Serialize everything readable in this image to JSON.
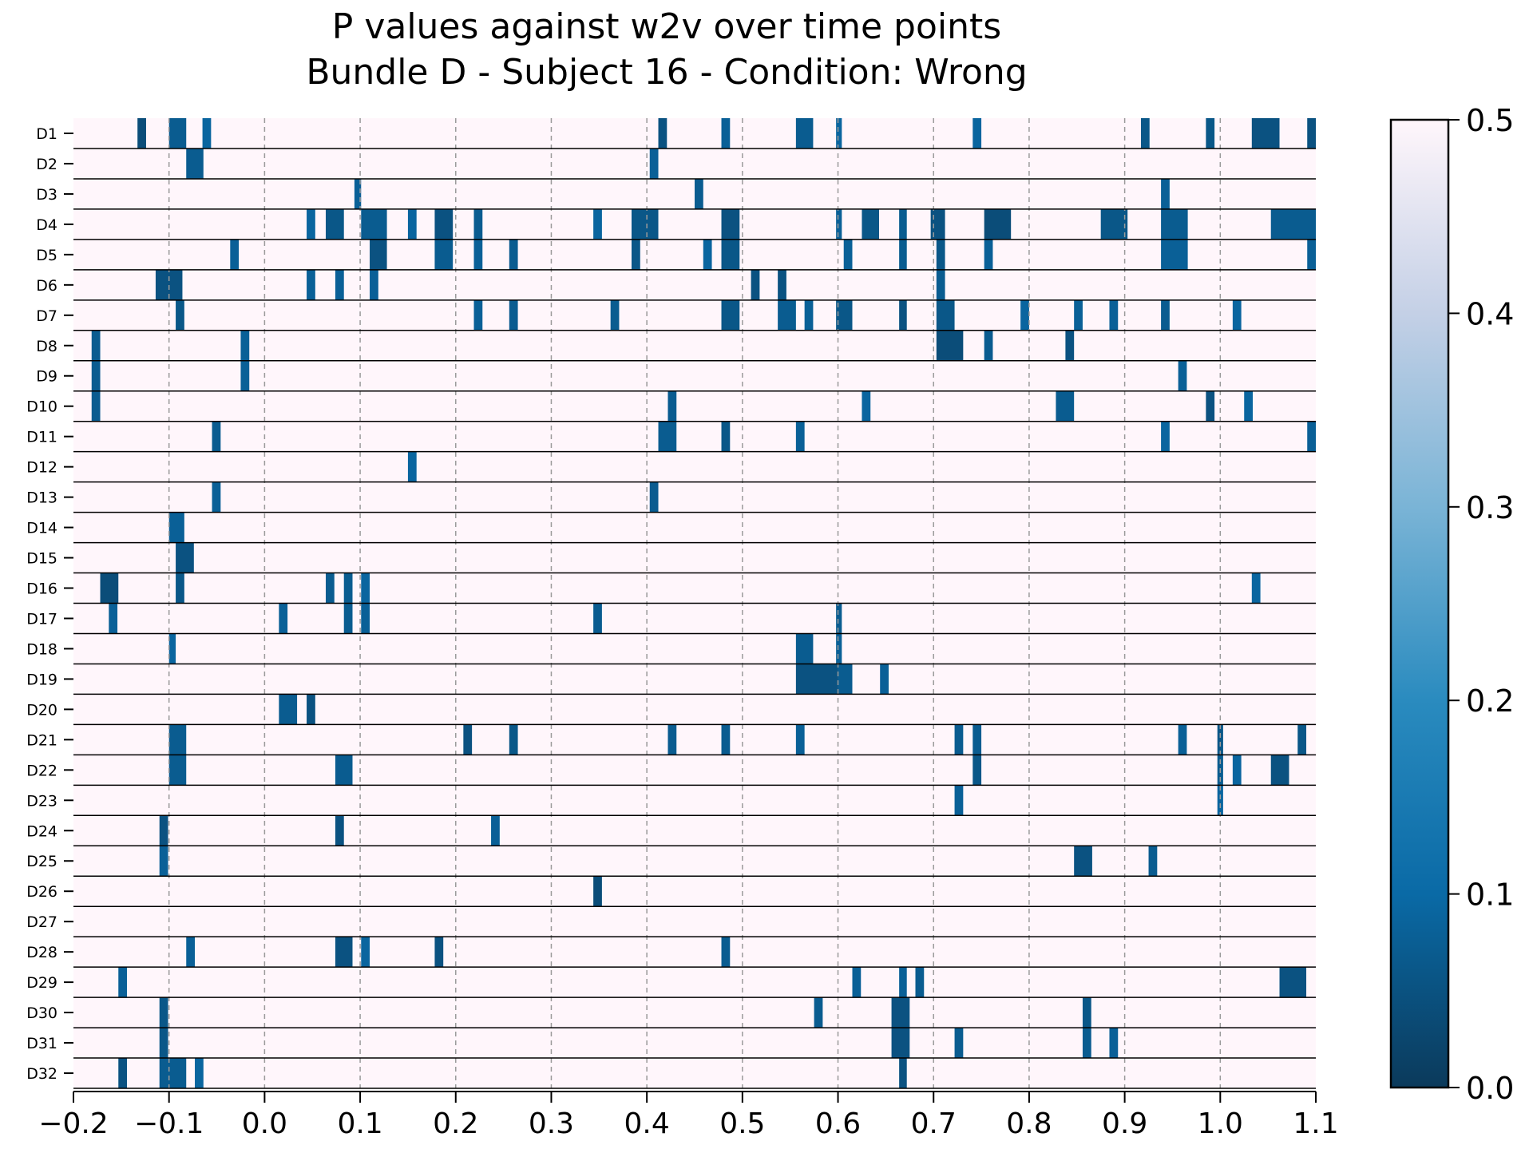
{
  "chart_data": {
    "type": "heatmap",
    "title_line1": "P values against w2v over time points",
    "title_line2": "Bundle D - Subject 16 - Condition: Wrong",
    "xlabel": "",
    "ylabel": "",
    "xlim": [
      -0.2,
      1.1
    ],
    "x_ticks": [
      "−0.2",
      "−0.1",
      "0.0",
      "0.1",
      "0.2",
      "0.3",
      "0.4",
      "0.5",
      "0.6",
      "0.7",
      "0.8",
      "0.9",
      "1.0",
      "1.1"
    ],
    "x_tick_values": [
      -0.2,
      -0.1,
      0.0,
      0.1,
      0.2,
      0.3,
      0.4,
      0.5,
      0.6,
      0.7,
      0.8,
      0.9,
      1.0,
      1.1
    ],
    "grid": "vertical dashed at x ticks",
    "rows": [
      "D1",
      "D2",
      "D3",
      "D4",
      "D5",
      "D6",
      "D7",
      "D8",
      "D9",
      "D10",
      "D11",
      "D12",
      "D13",
      "D14",
      "D15",
      "D16",
      "D17",
      "D18",
      "D19",
      "D20",
      "D21",
      "D22",
      "D23",
      "D24",
      "D25",
      "D26",
      "D27",
      "D28",
      "D29",
      "D30",
      "D31",
      "D32"
    ],
    "default_value": 0.5,
    "colorbar": {
      "ticks": [
        "0.0",
        "0.1",
        "0.2",
        "0.3",
        "0.4",
        "0.5"
      ],
      "tick_values": [
        0.0,
        0.1,
        0.2,
        0.3,
        0.4,
        0.5
      ],
      "range": [
        0.0,
        0.5
      ],
      "colors": [
        "#0b3a5b",
        "#0a6aa6",
        "#2a8bbf",
        "#7ab4d6",
        "#c4d0e6",
        "#fff6fb"
      ]
    },
    "cells": [
      [
        "D1",
        -0.133,
        -0.124,
        0.04
      ],
      [
        "D1",
        -0.1,
        -0.082,
        0.07
      ],
      [
        "D1",
        -0.065,
        -0.056,
        0.09
      ],
      [
        "D1",
        0.412,
        0.421,
        0.05
      ],
      [
        "D1",
        0.478,
        0.487,
        0.08
      ],
      [
        "D1",
        0.556,
        0.574,
        0.07
      ],
      [
        "D1",
        0.598,
        0.604,
        0.09
      ],
      [
        "D1",
        0.741,
        0.75,
        0.09
      ],
      [
        "D1",
        0.917,
        0.926,
        0.06
      ],
      [
        "D1",
        0.985,
        0.994,
        0.06
      ],
      [
        "D1",
        1.033,
        1.062,
        0.05
      ],
      [
        "D1",
        1.091,
        1.1,
        0.05
      ],
      [
        "D2",
        -0.082,
        -0.064,
        0.07
      ],
      [
        "D2",
        0.403,
        0.412,
        0.08
      ],
      [
        "D3",
        0.094,
        0.101,
        0.08
      ],
      [
        "D3",
        0.45,
        0.459,
        0.07
      ],
      [
        "D3",
        0.938,
        0.947,
        0.08
      ],
      [
        "D4",
        0.044,
        0.053,
        0.09
      ],
      [
        "D4",
        0.064,
        0.083,
        0.06
      ],
      [
        "D4",
        0.101,
        0.128,
        0.07
      ],
      [
        "D4",
        0.15,
        0.159,
        0.09
      ],
      [
        "D4",
        0.178,
        0.197,
        0.05
      ],
      [
        "D4",
        0.219,
        0.228,
        0.07
      ],
      [
        "D4",
        0.344,
        0.353,
        0.09
      ],
      [
        "D4",
        0.384,
        0.412,
        0.06
      ],
      [
        "D4",
        0.478,
        0.497,
        0.05
      ],
      [
        "D4",
        0.598,
        0.604,
        0.08
      ],
      [
        "D4",
        0.625,
        0.643,
        0.06
      ],
      [
        "D4",
        0.664,
        0.672,
        0.07
      ],
      [
        "D4",
        0.697,
        0.712,
        0.05
      ],
      [
        "D4",
        0.753,
        0.781,
        0.04
      ],
      [
        "D4",
        0.875,
        0.903,
        0.06
      ],
      [
        "D4",
        0.938,
        0.966,
        0.07
      ],
      [
        "D4",
        1.053,
        1.1,
        0.07
      ],
      [
        "D5",
        -0.036,
        -0.027,
        0.08
      ],
      [
        "D5",
        0.11,
        0.128,
        0.05
      ],
      [
        "D5",
        0.178,
        0.197,
        0.07
      ],
      [
        "D5",
        0.219,
        0.228,
        0.08
      ],
      [
        "D5",
        0.256,
        0.265,
        0.07
      ],
      [
        "D5",
        0.384,
        0.393,
        0.06
      ],
      [
        "D5",
        0.459,
        0.468,
        0.09
      ],
      [
        "D5",
        0.478,
        0.497,
        0.06
      ],
      [
        "D5",
        0.606,
        0.615,
        0.08
      ],
      [
        "D5",
        0.664,
        0.672,
        0.07
      ],
      [
        "D5",
        0.703,
        0.712,
        0.06
      ],
      [
        "D5",
        0.753,
        0.762,
        0.08
      ],
      [
        "D5",
        0.938,
        0.966,
        0.08
      ],
      [
        "D5",
        1.091,
        1.1,
        0.08
      ],
      [
        "D6",
        -0.114,
        -0.086,
        0.05
      ],
      [
        "D6",
        0.044,
        0.053,
        0.08
      ],
      [
        "D6",
        0.074,
        0.083,
        0.08
      ],
      [
        "D6",
        0.11,
        0.119,
        0.08
      ],
      [
        "D6",
        0.509,
        0.518,
        0.05
      ],
      [
        "D6",
        0.537,
        0.546,
        0.05
      ],
      [
        "D6",
        0.703,
        0.712,
        0.07
      ],
      [
        "D7",
        -0.093,
        -0.084,
        0.06
      ],
      [
        "D7",
        0.219,
        0.228,
        0.08
      ],
      [
        "D7",
        0.256,
        0.265,
        0.07
      ],
      [
        "D7",
        0.362,
        0.371,
        0.07
      ],
      [
        "D7",
        0.478,
        0.497,
        0.06
      ],
      [
        "D7",
        0.537,
        0.556,
        0.07
      ],
      [
        "D7",
        0.565,
        0.574,
        0.08
      ],
      [
        "D7",
        0.598,
        0.615,
        0.06
      ],
      [
        "D7",
        0.664,
        0.672,
        0.05
      ],
      [
        "D7",
        0.703,
        0.722,
        0.06
      ],
      [
        "D7",
        0.791,
        0.8,
        0.09
      ],
      [
        "D7",
        0.847,
        0.856,
        0.08
      ],
      [
        "D7",
        0.884,
        0.893,
        0.08
      ],
      [
        "D7",
        0.938,
        0.947,
        0.07
      ],
      [
        "D7",
        1.013,
        1.022,
        0.09
      ],
      [
        "D8",
        -0.181,
        -0.172,
        0.07
      ],
      [
        "D8",
        -0.025,
        -0.016,
        0.08
      ],
      [
        "D8",
        0.703,
        0.731,
        0.04
      ],
      [
        "D8",
        0.753,
        0.762,
        0.07
      ],
      [
        "D8",
        0.838,
        0.847,
        0.05
      ],
      [
        "D9",
        -0.181,
        -0.172,
        0.07
      ],
      [
        "D9",
        -0.025,
        -0.016,
        0.08
      ],
      [
        "D9",
        0.956,
        0.965,
        0.08
      ],
      [
        "D10",
        -0.181,
        -0.172,
        0.07
      ],
      [
        "D10",
        0.422,
        0.431,
        0.07
      ],
      [
        "D10",
        0.625,
        0.634,
        0.09
      ],
      [
        "D10",
        0.828,
        0.847,
        0.07
      ],
      [
        "D10",
        0.985,
        0.994,
        0.05
      ],
      [
        "D10",
        1.025,
        1.034,
        0.09
      ],
      [
        "D11",
        -0.055,
        -0.046,
        0.07
      ],
      [
        "D11",
        0.412,
        0.431,
        0.07
      ],
      [
        "D11",
        0.478,
        0.487,
        0.06
      ],
      [
        "D11",
        0.556,
        0.565,
        0.08
      ],
      [
        "D11",
        0.938,
        0.947,
        0.09
      ],
      [
        "D11",
        1.091,
        1.1,
        0.08
      ],
      [
        "D12",
        0.15,
        0.159,
        0.09
      ],
      [
        "D13",
        -0.055,
        -0.046,
        0.08
      ],
      [
        "D13",
        0.403,
        0.412,
        0.07
      ],
      [
        "D14",
        -0.1,
        -0.084,
        0.08
      ],
      [
        "D15",
        -0.093,
        -0.074,
        0.05
      ],
      [
        "D16",
        -0.172,
        -0.153,
        0.04
      ],
      [
        "D16",
        -0.093,
        -0.084,
        0.06
      ],
      [
        "D16",
        0.064,
        0.073,
        0.07
      ],
      [
        "D16",
        0.083,
        0.092,
        0.07
      ],
      [
        "D16",
        0.101,
        0.11,
        0.09
      ],
      [
        "D16",
        1.033,
        1.042,
        0.09
      ],
      [
        "D17",
        -0.163,
        -0.154,
        0.08
      ],
      [
        "D17",
        0.015,
        0.024,
        0.08
      ],
      [
        "D17",
        0.083,
        0.092,
        0.07
      ],
      [
        "D17",
        0.101,
        0.11,
        0.08
      ],
      [
        "D17",
        0.344,
        0.353,
        0.07
      ],
      [
        "D17",
        0.598,
        0.604,
        0.07
      ],
      [
        "D18",
        -0.1,
        -0.093,
        0.09
      ],
      [
        "D18",
        0.556,
        0.574,
        0.07
      ],
      [
        "D18",
        0.598,
        0.604,
        0.08
      ],
      [
        "D19",
        0.556,
        0.6,
        0.05
      ],
      [
        "D19",
        0.6,
        0.615,
        0.07
      ],
      [
        "D19",
        0.644,
        0.653,
        0.08
      ],
      [
        "D20",
        0.015,
        0.034,
        0.07
      ],
      [
        "D20",
        0.044,
        0.053,
        0.05
      ],
      [
        "D21",
        -0.1,
        -0.082,
        0.07
      ],
      [
        "D21",
        0.208,
        0.217,
        0.05
      ],
      [
        "D21",
        0.256,
        0.265,
        0.06
      ],
      [
        "D21",
        0.422,
        0.431,
        0.07
      ],
      [
        "D21",
        0.478,
        0.487,
        0.07
      ],
      [
        "D21",
        0.556,
        0.565,
        0.08
      ],
      [
        "D21",
        0.722,
        0.731,
        0.07
      ],
      [
        "D21",
        0.741,
        0.75,
        0.07
      ],
      [
        "D21",
        0.956,
        0.965,
        0.08
      ],
      [
        "D21",
        0.997,
        1.003,
        0.06
      ],
      [
        "D21",
        1.081,
        1.09,
        0.06
      ],
      [
        "D22",
        -0.1,
        -0.082,
        0.07
      ],
      [
        "D22",
        0.074,
        0.092,
        0.07
      ],
      [
        "D22",
        0.741,
        0.75,
        0.06
      ],
      [
        "D22",
        0.997,
        1.003,
        0.07
      ],
      [
        "D22",
        1.013,
        1.022,
        0.09
      ],
      [
        "D22",
        1.053,
        1.072,
        0.05
      ],
      [
        "D23",
        0.722,
        0.731,
        0.08
      ],
      [
        "D23",
        0.997,
        1.003,
        0.09
      ],
      [
        "D24",
        -0.11,
        -0.101,
        0.05
      ],
      [
        "D24",
        0.074,
        0.083,
        0.05
      ],
      [
        "D24",
        0.237,
        0.246,
        0.08
      ],
      [
        "D25",
        -0.11,
        -0.101,
        0.08
      ],
      [
        "D25",
        0.847,
        0.866,
        0.05
      ],
      [
        "D25",
        0.925,
        0.934,
        0.07
      ],
      [
        "D26",
        0.344,
        0.353,
        0.04
      ],
      [
        "D28",
        -0.082,
        -0.073,
        0.08
      ],
      [
        "D28",
        0.074,
        0.092,
        0.05
      ],
      [
        "D28",
        0.101,
        0.11,
        0.09
      ],
      [
        "D28",
        0.178,
        0.187,
        0.05
      ],
      [
        "D28",
        0.478,
        0.487,
        0.07
      ],
      [
        "D29",
        -0.153,
        -0.144,
        0.08
      ],
      [
        "D29",
        0.615,
        0.624,
        0.08
      ],
      [
        "D29",
        0.664,
        0.672,
        0.08
      ],
      [
        "D29",
        0.681,
        0.69,
        0.07
      ],
      [
        "D29",
        1.062,
        1.09,
        0.05
      ],
      [
        "D30",
        -0.11,
        -0.101,
        0.06
      ],
      [
        "D30",
        0.575,
        0.584,
        0.07
      ],
      [
        "D30",
        0.656,
        0.675,
        0.05
      ],
      [
        "D30",
        0.856,
        0.865,
        0.06
      ],
      [
        "D31",
        -0.11,
        -0.101,
        0.06
      ],
      [
        "D31",
        0.656,
        0.675,
        0.05
      ],
      [
        "D31",
        0.722,
        0.731,
        0.07
      ],
      [
        "D31",
        0.856,
        0.865,
        0.07
      ],
      [
        "D31",
        0.884,
        0.893,
        0.08
      ],
      [
        "D32",
        -0.153,
        -0.144,
        0.05
      ],
      [
        "D32",
        -0.11,
        -0.082,
        0.07
      ],
      [
        "D32",
        -0.073,
        -0.064,
        0.09
      ],
      [
        "D32",
        0.664,
        0.672,
        0.05
      ]
    ]
  }
}
